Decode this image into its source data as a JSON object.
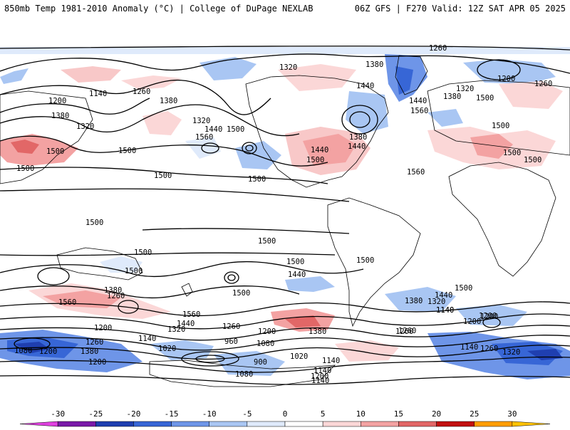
{
  "header": {
    "left": "850mb Temp 1981-2010 Anomaly (°C) | College of DuPage NEXLAB",
    "right": "06Z GFS | F270 Valid: 12Z SAT APR 05 2025"
  },
  "colorbar": {
    "ticks": [
      "-30",
      "-25",
      "-20",
      "-15",
      "-10",
      "-5",
      "0",
      "5",
      "10",
      "15",
      "20",
      "25",
      "30"
    ],
    "colors": [
      "#e040e0",
      "#7a1aa8",
      "#1f3fb0",
      "#3766d6",
      "#6e95e8",
      "#a9c6f3",
      "#dfeafb",
      "#ffffff",
      "#fbd7d7",
      "#f3a2a2",
      "#e26767",
      "#c21010",
      "#ff9d00",
      "#ffc200"
    ]
  },
  "contour_labels": [
    {
      "text": "1260"
    },
    {
      "text": "1320"
    },
    {
      "text": "1380"
    },
    {
      "text": "1440"
    },
    {
      "text": "1200"
    },
    {
      "text": "1140"
    },
    {
      "text": "1260"
    },
    {
      "text": "1380"
    },
    {
      "text": "1500"
    },
    {
      "text": "1320"
    },
    {
      "text": "1560"
    },
    {
      "text": "1500"
    },
    {
      "text": "1200"
    },
    {
      "text": "1380"
    },
    {
      "text": "1320"
    },
    {
      "text": "1440"
    },
    {
      "text": "1500"
    },
    {
      "text": "1500"
    },
    {
      "text": "1500"
    },
    {
      "text": "1440"
    },
    {
      "text": "1380"
    },
    {
      "text": "1440"
    },
    {
      "text": "1560"
    },
    {
      "text": "1500"
    },
    {
      "text": "1320"
    },
    {
      "text": "1380"
    },
    {
      "text": "1500"
    },
    {
      "text": "1440"
    },
    {
      "text": "1500"
    },
    {
      "text": "1500"
    },
    {
      "text": "1500"
    },
    {
      "text": "1560"
    },
    {
      "text": "1260"
    },
    {
      "text": "1200"
    },
    {
      "text": "1500"
    },
    {
      "text": "1500"
    },
    {
      "text": "1500"
    },
    {
      "text": "1500"
    },
    {
      "text": "1500"
    },
    {
      "text": "1500"
    },
    {
      "text": "1500"
    },
    {
      "text": "1440"
    },
    {
      "text": "1500"
    },
    {
      "text": "1500"
    },
    {
      "text": "1560"
    },
    {
      "text": "1380"
    },
    {
      "text": "1260"
    },
    {
      "text": "1440"
    },
    {
      "text": "1380"
    },
    {
      "text": "1320"
    },
    {
      "text": "1440"
    },
    {
      "text": "1560"
    },
    {
      "text": "1320"
    },
    {
      "text": "1260"
    },
    {
      "text": "1380"
    },
    {
      "text": "1200"
    },
    {
      "text": "1140"
    },
    {
      "text": "1260"
    },
    {
      "text": "1200"
    },
    {
      "text": "1140"
    },
    {
      "text": "1080"
    },
    {
      "text": "1200"
    },
    {
      "text": "1260"
    },
    {
      "text": "1380"
    },
    {
      "text": "1200"
    },
    {
      "text": "1140"
    },
    {
      "text": "1020"
    },
    {
      "text": "960"
    },
    {
      "text": "1080"
    },
    {
      "text": "1020"
    },
    {
      "text": "900"
    },
    {
      "text": "1140"
    },
    {
      "text": "1080"
    },
    {
      "text": "1140"
    },
    {
      "text": "1200"
    },
    {
      "text": "1200"
    },
    {
      "text": "1140"
    },
    {
      "text": "1260"
    },
    {
      "text": "1320"
    },
    {
      "text": "1140"
    },
    {
      "text": "1200"
    },
    {
      "text": "1260"
    }
  ]
}
